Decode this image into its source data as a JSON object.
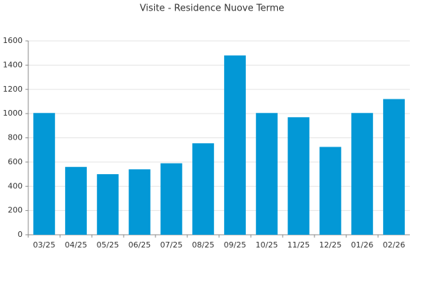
{
  "chart_data": {
    "type": "bar",
    "title": "Visite - Residence Nuove Terme",
    "categories": [
      "03/25",
      "04/25",
      "05/25",
      "06/25",
      "07/25",
      "08/25",
      "09/25",
      "10/25",
      "11/25",
      "12/25",
      "01/26",
      "02/26"
    ],
    "values": [
      1005,
      560,
      500,
      540,
      590,
      755,
      1480,
      1005,
      970,
      725,
      1005,
      1120
    ],
    "color": "#0398d6",
    "ylim": [
      0,
      1600
    ],
    "yticks": [
      0,
      200,
      400,
      600,
      800,
      1000,
      1200,
      1400,
      1600
    ],
    "grid": true
  }
}
